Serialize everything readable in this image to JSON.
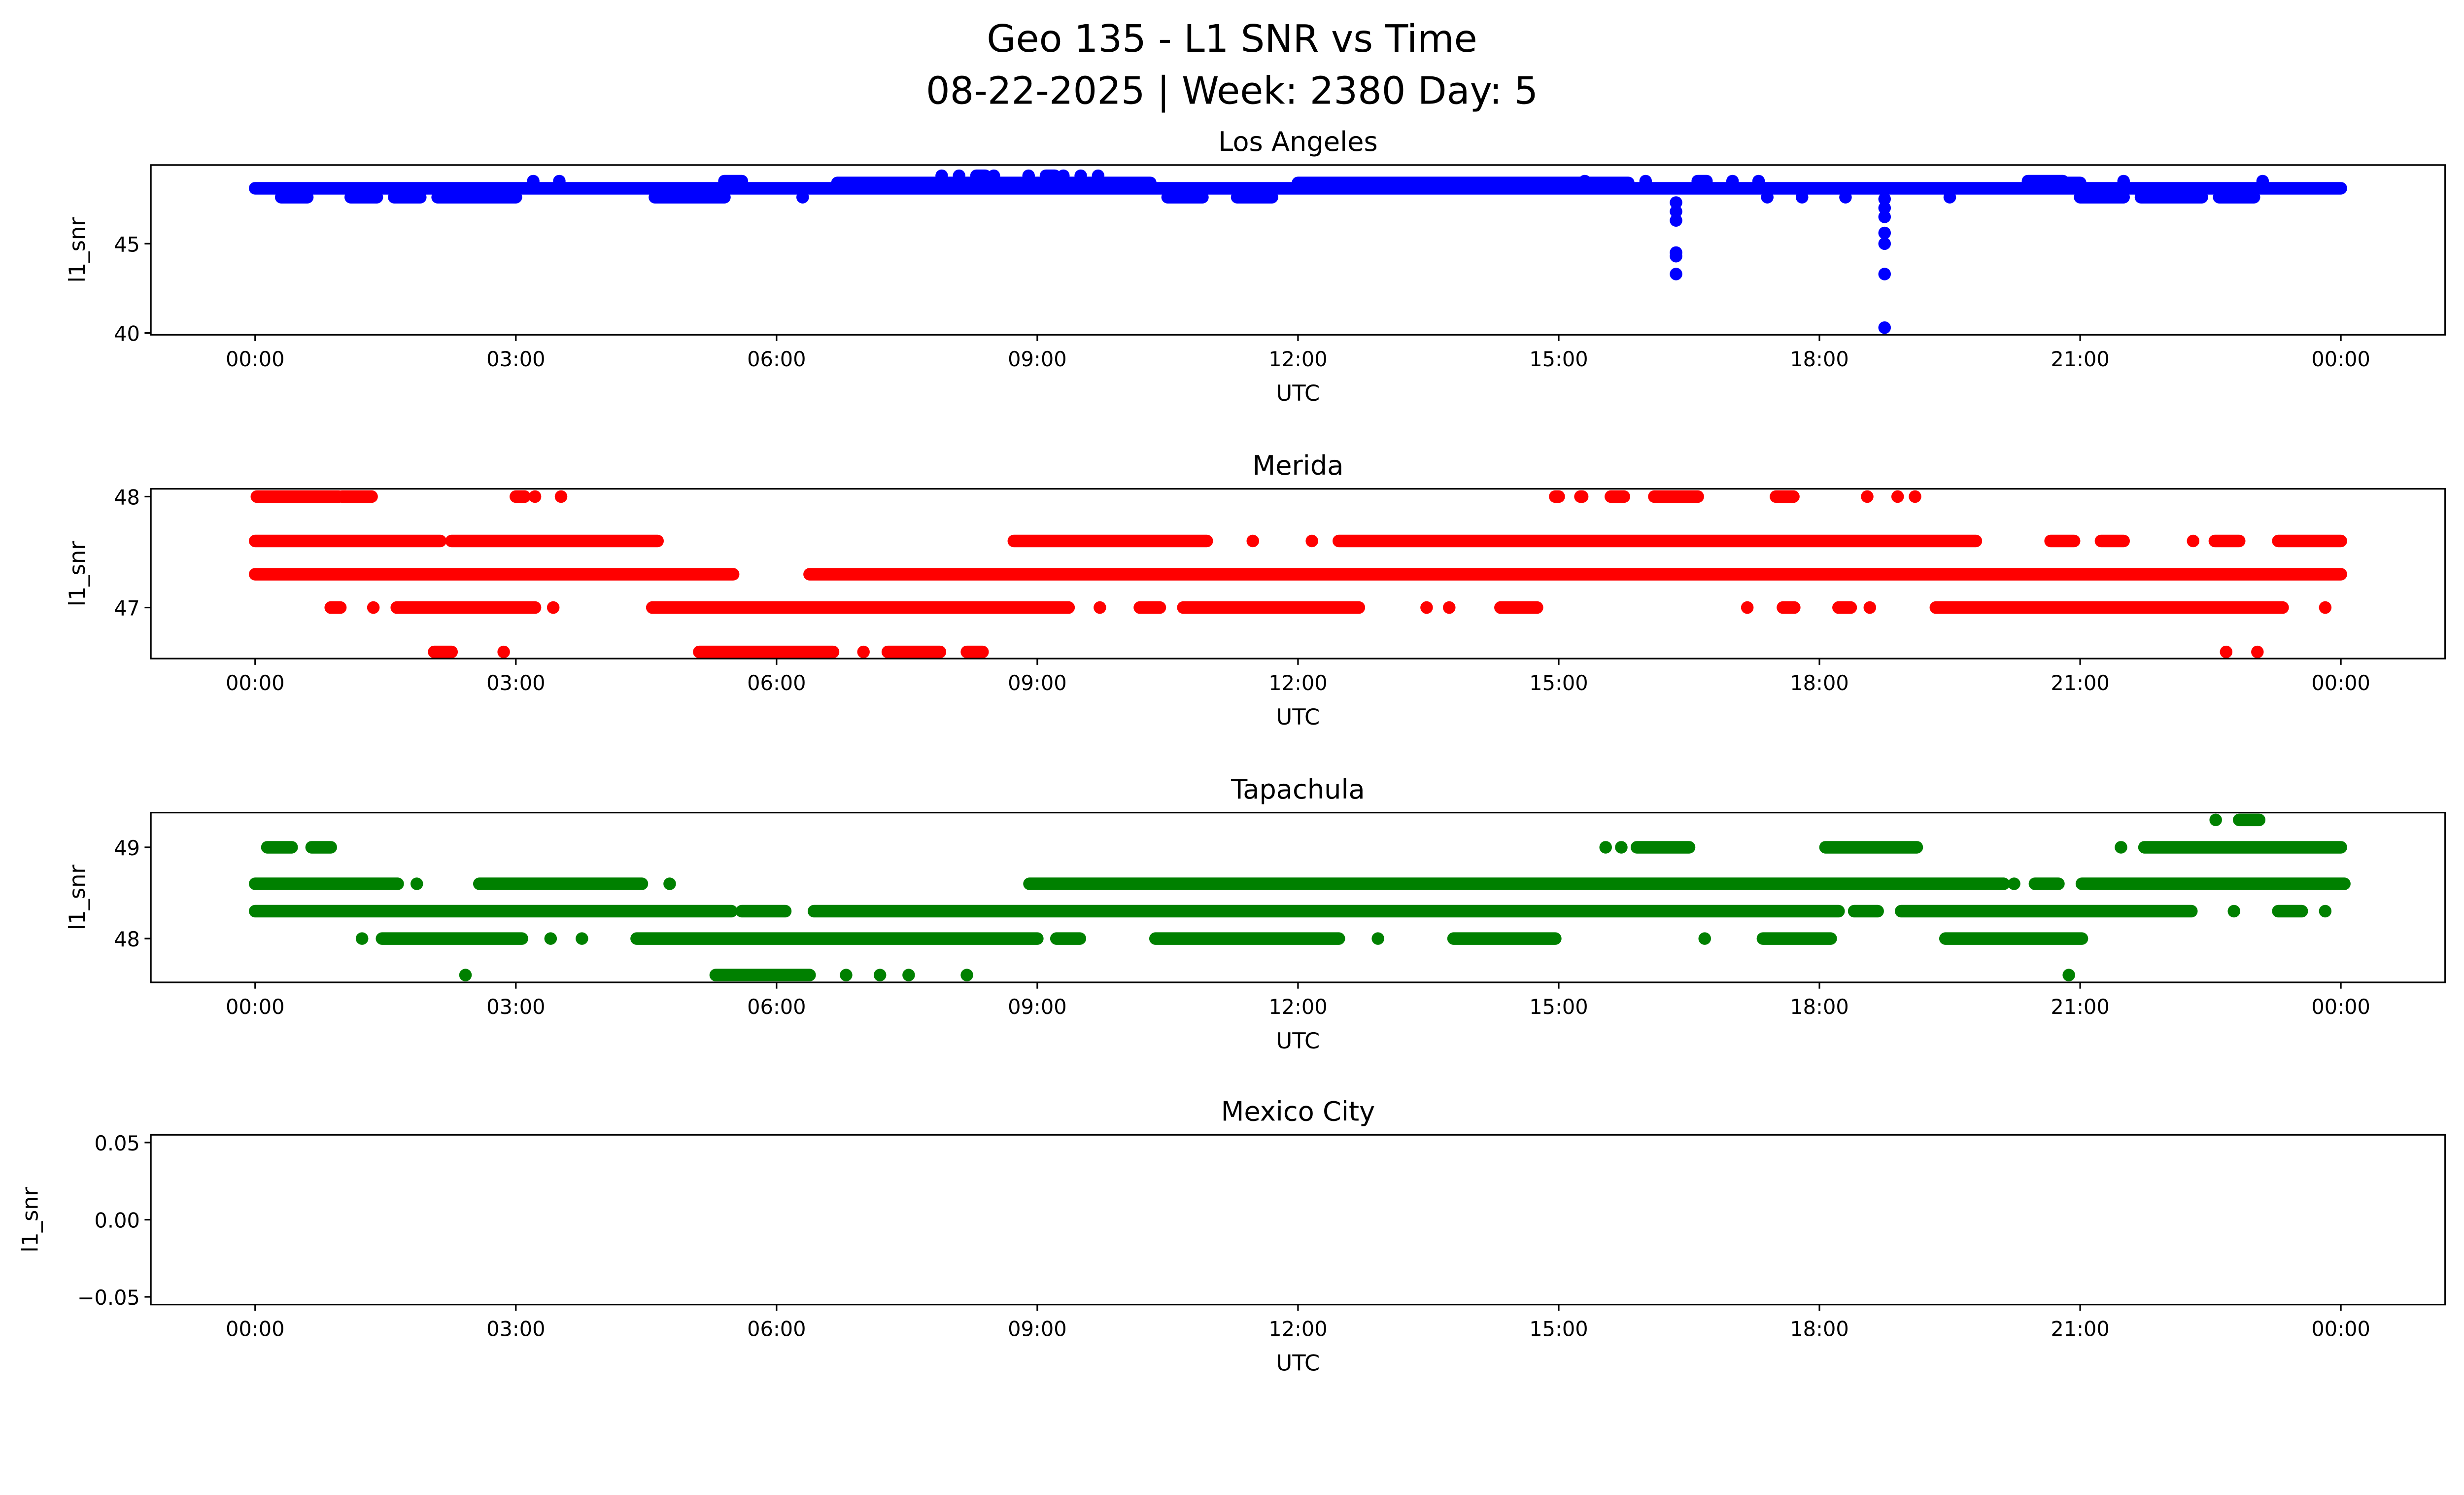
{
  "chart_data": {
    "type": "scatter",
    "title": "Geo 135 - L1 SNR vs Time",
    "subtitle": "08-22-2025 | Week: 2380 Day: 5",
    "x_unit": "hours UTC",
    "xlim": [
      -1.2,
      25.2
    ],
    "xticks": [
      0,
      3,
      6,
      9,
      12,
      15,
      18,
      21,
      24
    ],
    "xtick_labels": [
      "00:00",
      "03:00",
      "06:00",
      "09:00",
      "12:00",
      "15:00",
      "18:00",
      "21:00",
      "00:00"
    ],
    "panels": [
      {
        "title": "Los Angeles",
        "xlabel": "UTC",
        "ylabel": "l1_snr",
        "color": "#0000ff",
        "ylim": [
          39.9,
          49.4
        ],
        "yticks": [
          40,
          45
        ],
        "ytick_labels": [
          "40",
          "45"
        ],
        "segments": [
          [
            0,
            24,
            48.1
          ],
          [
            6.7,
            10.3,
            48.4
          ],
          [
            12.0,
            15.8,
            48.4
          ],
          [
            20.4,
            21.0,
            48.4
          ],
          [
            7.9,
            7.9,
            48.8
          ],
          [
            8.1,
            8.1,
            48.8
          ],
          [
            8.3,
            8.4,
            48.8
          ],
          [
            8.5,
            8.5,
            48.8
          ],
          [
            8.9,
            8.9,
            48.8
          ],
          [
            9.1,
            9.2,
            48.8
          ],
          [
            9.3,
            9.3,
            48.8
          ],
          [
            9.5,
            9.5,
            48.8
          ],
          [
            9.7,
            9.7,
            48.8
          ],
          [
            0.3,
            0.6,
            47.6
          ],
          [
            1.1,
            1.4,
            47.6
          ],
          [
            1.6,
            1.9,
            47.6
          ],
          [
            2.1,
            3.0,
            47.6
          ],
          [
            4.6,
            5.4,
            47.6
          ],
          [
            6.3,
            6.3,
            47.6
          ],
          [
            10.5,
            10.9,
            47.6
          ],
          [
            11.3,
            11.7,
            47.6
          ],
          [
            17.4,
            17.4,
            47.6
          ],
          [
            17.8,
            17.8,
            47.6
          ],
          [
            18.3,
            18.3,
            47.6
          ],
          [
            19.5,
            19.5,
            47.6
          ],
          [
            21.0,
            21.5,
            47.6
          ],
          [
            21.7,
            22.4,
            47.6
          ],
          [
            22.6,
            23.0,
            47.6
          ],
          [
            3.2,
            3.2,
            48.5
          ],
          [
            3.5,
            3.5,
            48.5
          ],
          [
            5.4,
            5.6,
            48.5
          ],
          [
            15.3,
            15.3,
            48.5
          ],
          [
            16.0,
            16.0,
            48.5
          ],
          [
            16.6,
            16.7,
            48.5
          ],
          [
            17.0,
            17.0,
            48.5
          ],
          [
            17.3,
            17.3,
            48.5
          ],
          [
            20.4,
            20.8,
            48.5
          ],
          [
            21.5,
            21.5,
            48.5
          ],
          [
            23.1,
            23.1,
            48.5
          ],
          [
            16.35,
            16.35,
            47.3
          ],
          [
            16.35,
            16.35,
            46.8
          ],
          [
            16.35,
            16.35,
            46.3
          ],
          [
            16.35,
            16.35,
            44.5
          ],
          [
            16.35,
            16.35,
            44.3
          ],
          [
            16.35,
            16.35,
            43.3
          ],
          [
            18.75,
            18.75,
            47.5
          ],
          [
            18.75,
            18.75,
            47.0
          ],
          [
            18.75,
            18.75,
            46.5
          ],
          [
            18.75,
            18.75,
            45.6
          ],
          [
            18.75,
            18.75,
            45.0
          ],
          [
            18.75,
            18.75,
            43.3
          ],
          [
            18.75,
            18.75,
            40.3
          ]
        ]
      },
      {
        "title": "Merida",
        "xlabel": "UTC",
        "ylabel": "l1_snr",
        "color": "#ff0000",
        "ylim": [
          46.54,
          48.07
        ],
        "yticks": [
          47,
          48
        ],
        "ytick_labels": [
          "47",
          "48"
        ],
        "segments": [
          [
            0.02,
            0.96,
            48.0
          ],
          [
            1.0,
            1.34,
            48.0
          ],
          [
            3.0,
            3.1,
            48.0
          ],
          [
            3.22,
            3.22,
            48.0
          ],
          [
            3.52,
            3.52,
            48.0
          ],
          [
            14.96,
            15.0,
            48.0
          ],
          [
            15.25,
            15.27,
            48.0
          ],
          [
            15.6,
            15.75,
            48.0
          ],
          [
            16.1,
            16.6,
            48.0
          ],
          [
            17.5,
            17.7,
            48.0
          ],
          [
            18.55,
            18.55,
            48.0
          ],
          [
            18.9,
            18.9,
            48.0
          ],
          [
            19.1,
            19.1,
            48.0
          ],
          [
            0,
            2.13,
            47.6
          ],
          [
            2.26,
            4.63,
            47.6
          ],
          [
            8.73,
            10.95,
            47.6
          ],
          [
            11.48,
            11.48,
            47.6
          ],
          [
            12.16,
            12.16,
            47.6
          ],
          [
            12.47,
            19.8,
            47.6
          ],
          [
            20.66,
            20.93,
            47.6
          ],
          [
            21.24,
            21.5,
            47.6
          ],
          [
            22.3,
            22.3,
            47.6
          ],
          [
            22.55,
            22.83,
            47.6
          ],
          [
            23.28,
            24.0,
            47.6
          ],
          [
            0,
            5.5,
            47.3
          ],
          [
            6.38,
            24.0,
            47.3
          ],
          [
            0.87,
            0.98,
            47.0
          ],
          [
            1.36,
            1.36,
            47.0
          ],
          [
            1.63,
            3.22,
            47.0
          ],
          [
            3.43,
            3.43,
            47.0
          ],
          [
            4.57,
            9.36,
            47.0
          ],
          [
            9.72,
            9.72,
            47.0
          ],
          [
            10.18,
            10.41,
            47.0
          ],
          [
            10.68,
            12.7,
            47.0
          ],
          [
            13.48,
            13.48,
            47.0
          ],
          [
            13.74,
            13.74,
            47.0
          ],
          [
            14.33,
            14.75,
            47.0
          ],
          [
            17.17,
            17.17,
            47.0
          ],
          [
            17.58,
            17.71,
            47.0
          ],
          [
            18.22,
            18.36,
            47.0
          ],
          [
            18.58,
            18.58,
            47.0
          ],
          [
            19.34,
            23.33,
            47.0
          ],
          [
            23.82,
            23.82,
            47.0
          ],
          [
            2.06,
            2.26,
            46.6
          ],
          [
            2.86,
            2.86,
            46.6
          ],
          [
            5.11,
            6.65,
            46.6
          ],
          [
            7.0,
            7.0,
            46.6
          ],
          [
            7.28,
            7.88,
            46.6
          ],
          [
            8.19,
            8.37,
            46.6
          ],
          [
            22.68,
            22.68,
            46.6
          ],
          [
            23.04,
            23.04,
            46.6
          ]
        ]
      },
      {
        "title": "Tapachula",
        "xlabel": "UTC",
        "ylabel": "l1_snr",
        "color": "#008000",
        "ylim": [
          47.52,
          49.38
        ],
        "yticks": [
          48,
          49
        ],
        "ytick_labels": [
          "48",
          "49"
        ],
        "segments": [
          [
            22.56,
            22.56,
            49.3
          ],
          [
            22.83,
            23.06,
            49.3
          ],
          [
            0.14,
            0.42,
            49.0
          ],
          [
            0.65,
            0.87,
            49.0
          ],
          [
            15.54,
            15.54,
            49.0
          ],
          [
            15.72,
            15.72,
            49.0
          ],
          [
            15.9,
            16.5,
            49.0
          ],
          [
            18.07,
            19.12,
            49.0
          ],
          [
            21.47,
            21.47,
            49.0
          ],
          [
            21.74,
            24.0,
            49.0
          ],
          [
            0,
            1.64,
            48.6
          ],
          [
            1.86,
            1.86,
            48.6
          ],
          [
            2.58,
            4.45,
            48.6
          ],
          [
            4.77,
            4.77,
            48.6
          ],
          [
            8.91,
            20.12,
            48.6
          ],
          [
            20.24,
            20.24,
            48.6
          ],
          [
            20.48,
            20.75,
            48.6
          ],
          [
            21.02,
            24.04,
            48.6
          ],
          [
            0,
            5.48,
            48.3
          ],
          [
            5.6,
            6.1,
            48.3
          ],
          [
            6.43,
            18.22,
            48.3
          ],
          [
            18.4,
            18.67,
            48.3
          ],
          [
            18.94,
            22.28,
            48.3
          ],
          [
            22.77,
            22.77,
            48.3
          ],
          [
            23.28,
            23.55,
            48.3
          ],
          [
            23.82,
            23.82,
            48.3
          ],
          [
            1.23,
            1.23,
            48.0
          ],
          [
            1.46,
            3.07,
            48.0
          ],
          [
            3.4,
            3.4,
            48.0
          ],
          [
            3.76,
            3.76,
            48.0
          ],
          [
            4.39,
            9.0,
            48.0
          ],
          [
            9.22,
            9.49,
            48.0
          ],
          [
            10.36,
            12.47,
            48.0
          ],
          [
            12.92,
            12.92,
            48.0
          ],
          [
            13.79,
            14.96,
            48.0
          ],
          [
            16.68,
            16.68,
            48.0
          ],
          [
            17.35,
            18.13,
            48.0
          ],
          [
            19.45,
            21.02,
            48.0
          ],
          [
            2.42,
            2.42,
            47.6
          ],
          [
            5.3,
            6.38,
            47.6
          ],
          [
            6.8,
            6.8,
            47.6
          ],
          [
            7.19,
            7.19,
            47.6
          ],
          [
            7.52,
            7.52,
            47.6
          ],
          [
            8.19,
            8.19,
            47.6
          ],
          [
            20.87,
            20.87,
            47.6
          ]
        ]
      },
      {
        "title": "Mexico City",
        "xlabel": "UTC",
        "ylabel": "l1_snr",
        "color": "#0000ff",
        "ylim": [
          -0.055,
          0.055
        ],
        "yticks": [
          -0.05,
          0,
          0.05
        ],
        "ytick_labels": [
          "−0.05",
          "0.00",
          "0.05"
        ],
        "segments": []
      }
    ]
  }
}
